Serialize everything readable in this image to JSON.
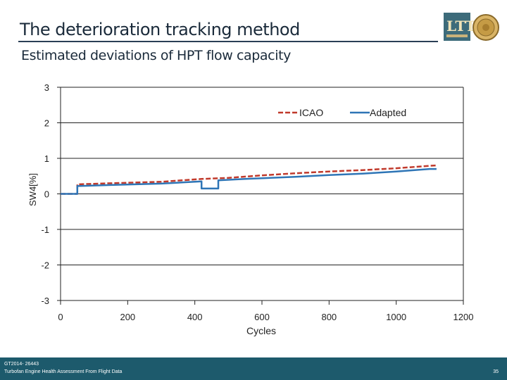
{
  "slide": {
    "title": "The deterioration tracking method",
    "subtitle": "Estimated deviations of HPT flow capacity"
  },
  "footer": {
    "ref": "GT2014- 26443",
    "desc": "Turbofan Engine Health Assessment From Flight Data",
    "page": "35"
  },
  "logo": {
    "icon": "ltt-logo",
    "text": "LTT"
  },
  "colors": {
    "icao": "#c0392b",
    "adapted": "#2e75b6",
    "footer_bg": "#1d5a6c"
  },
  "chart_data": {
    "type": "line",
    "xlabel": "Cycles",
    "ylabel": "SW4[%]",
    "xlim": [
      0,
      1200
    ],
    "ylim": [
      -3,
      3
    ],
    "xticks": [
      0,
      200,
      400,
      600,
      800,
      1000,
      1200
    ],
    "yticks": [
      3,
      2,
      1,
      0,
      -1,
      -2,
      -3
    ],
    "legend_position": "top-right",
    "grid": "horizontal",
    "series": [
      {
        "name": "ICAO",
        "style": "dashed",
        "x": [
          0,
          50,
          50,
          150,
          300,
          420,
          500,
          600,
          700,
          800,
          900,
          1000,
          1100,
          1120
        ],
        "y": [
          0,
          0,
          0.27,
          0.3,
          0.34,
          0.42,
          0.45,
          0.52,
          0.58,
          0.63,
          0.67,
          0.72,
          0.79,
          0.8
        ]
      },
      {
        "name": "Adapted",
        "style": "solid",
        "x": [
          0,
          50,
          50,
          150,
          300,
          420,
          420,
          470,
          470,
          550,
          700,
          800,
          900,
          1000,
          1100,
          1120
        ],
        "y": [
          0,
          0,
          0.22,
          0.25,
          0.29,
          0.35,
          0.15,
          0.15,
          0.38,
          0.42,
          0.48,
          0.53,
          0.57,
          0.63,
          0.7,
          0.7
        ]
      }
    ]
  }
}
